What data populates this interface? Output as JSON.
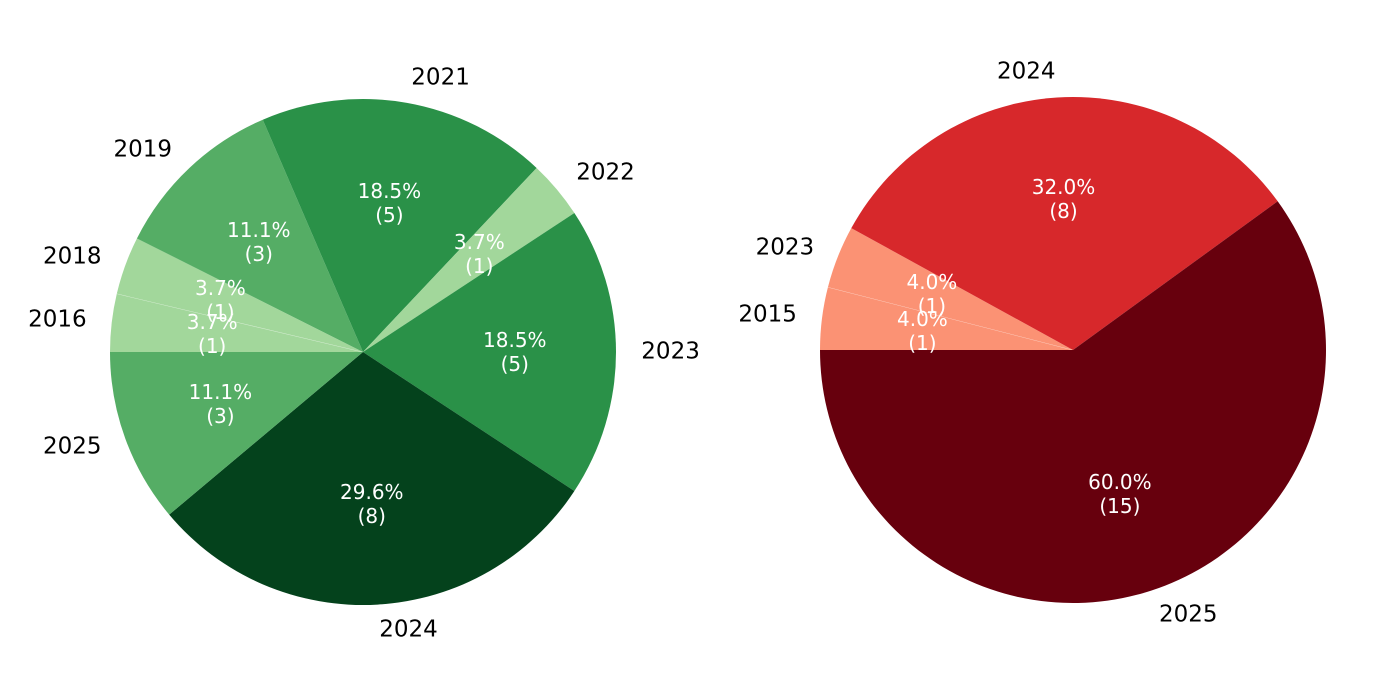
{
  "figure": {
    "background": "#ffffff",
    "label_text_color": "#000000",
    "pct_text_color": "#ffffff"
  },
  "chart_data": [
    {
      "type": "pie",
      "name": "green-year-distribution",
      "palette_name": "Greens",
      "start_angle_deg": 180,
      "direction": "clockwise",
      "total": 27,
      "label_text_color": "#000000",
      "pct_text_color": "#ffffff",
      "slices": [
        {
          "label": "2016",
          "value": 1,
          "pct_label": "3.7%",
          "count_label": "(1)",
          "color": "#a2d79b"
        },
        {
          "label": "2018",
          "value": 1,
          "pct_label": "3.7%",
          "count_label": "(1)",
          "color": "#a2d79b"
        },
        {
          "label": "2019",
          "value": 3,
          "pct_label": "11.1%",
          "count_label": "(3)",
          "color": "#55ad65"
        },
        {
          "label": "2021",
          "value": 5,
          "pct_label": "18.5%",
          "count_label": "(5)",
          "color": "#2a9148"
        },
        {
          "label": "2022",
          "value": 1,
          "pct_label": "3.7%",
          "count_label": "(1)",
          "color": "#a2d79b"
        },
        {
          "label": "2023",
          "value": 5,
          "pct_label": "18.5%",
          "count_label": "(5)",
          "color": "#2a9148"
        },
        {
          "label": "2024",
          "value": 8,
          "pct_label": "29.6%",
          "count_label": "(8)",
          "color": "#04421c"
        },
        {
          "label": "2025",
          "value": 3,
          "pct_label": "11.1%",
          "count_label": "(3)",
          "color": "#55ad65"
        }
      ]
    },
    {
      "type": "pie",
      "name": "red-year-distribution",
      "palette_name": "Reds",
      "start_angle_deg": 180,
      "direction": "clockwise",
      "total": 25,
      "label_text_color": "#000000",
      "pct_text_color": "#ffffff",
      "slices": [
        {
          "label": "2015",
          "value": 1,
          "pct_label": "4.0%",
          "count_label": "(1)",
          "color": "#fb9274"
        },
        {
          "label": "2023",
          "value": 1,
          "pct_label": "4.0%",
          "count_label": "(1)",
          "color": "#fb9274"
        },
        {
          "label": "2024",
          "value": 8,
          "pct_label": "32.0%",
          "count_label": "(8)",
          "color": "#d7282b"
        },
        {
          "label": "2025",
          "value": 15,
          "pct_label": "60.0%",
          "count_label": "(15)",
          "color": "#67000d"
        }
      ]
    }
  ]
}
